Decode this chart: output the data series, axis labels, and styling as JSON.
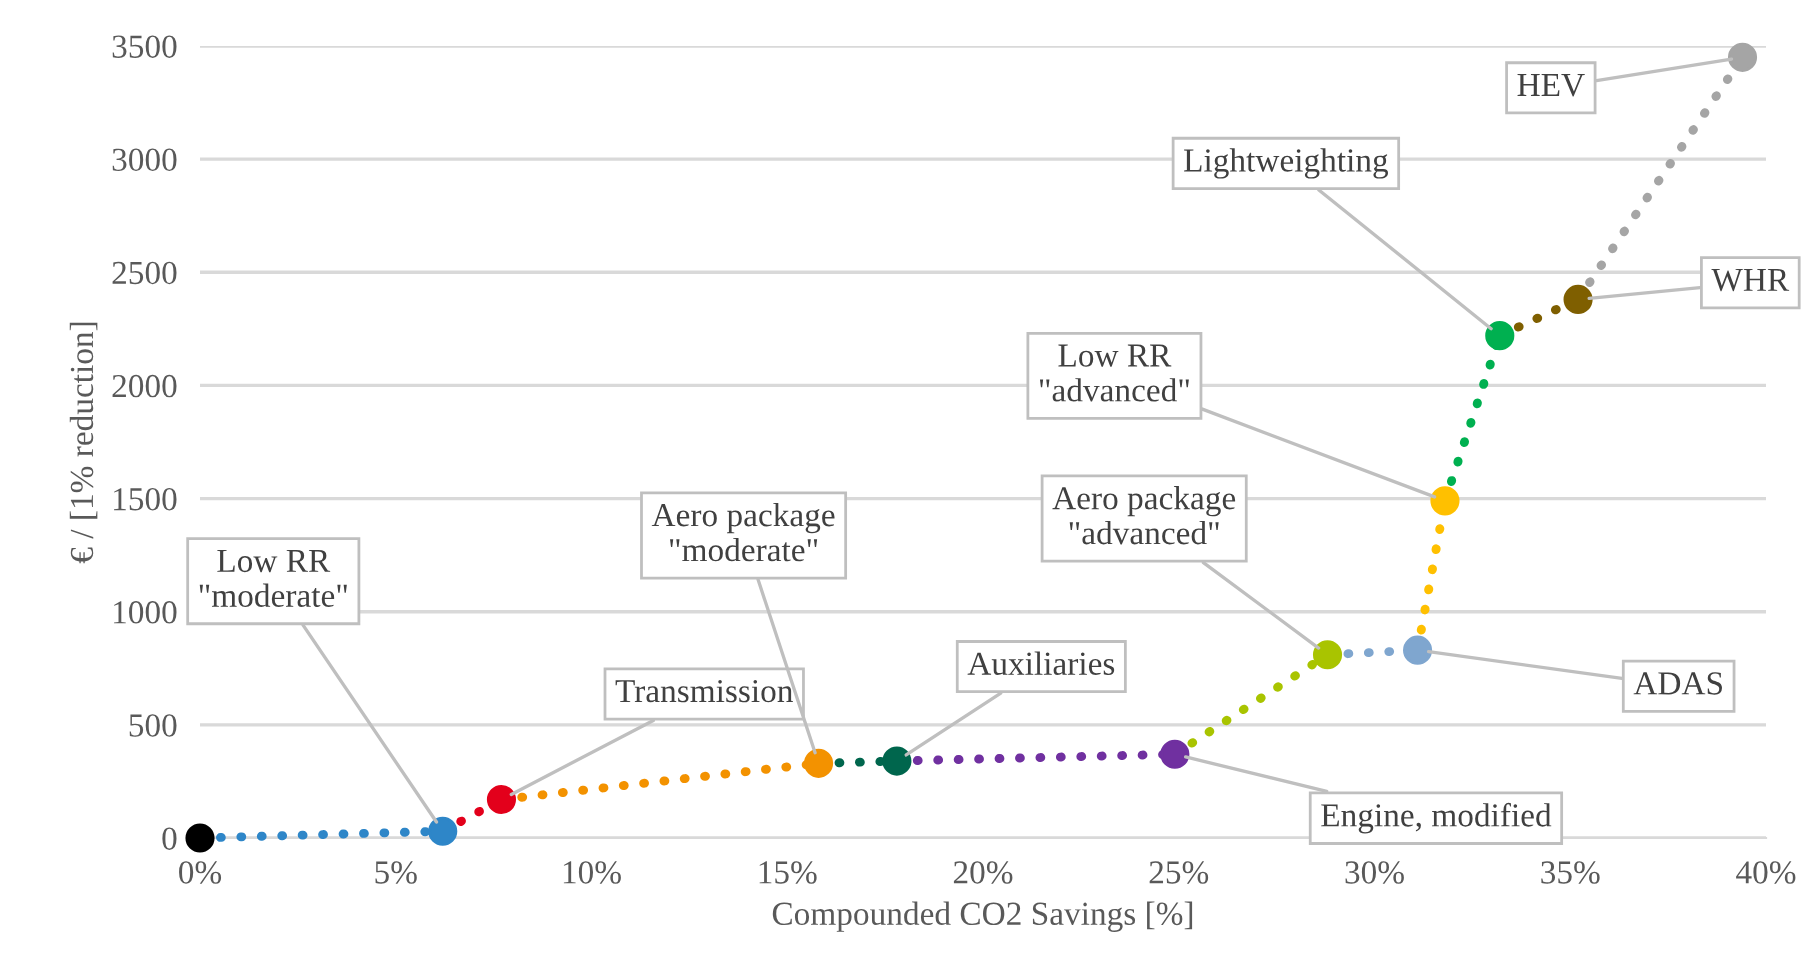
{
  "chart_data": {
    "type": "line",
    "xlabel": "Compounded CO2 Savings [%]",
    "ylabel": "€ / [1% reduction]",
    "xlim": [
      0,
      40
    ],
    "ylim": [
      0,
      3500
    ],
    "xticks": [
      {
        "value": 0,
        "label": "0%"
      },
      {
        "value": 5,
        "label": "5%"
      },
      {
        "value": 10,
        "label": "10%"
      },
      {
        "value": 15,
        "label": "15%"
      },
      {
        "value": 20,
        "label": "20%"
      },
      {
        "value": 25,
        "label": "25%"
      },
      {
        "value": 30,
        "label": "30%"
      },
      {
        "value": 35,
        "label": "35%"
      },
      {
        "value": 40,
        "label": "40%"
      }
    ],
    "yticks": [
      0,
      500,
      1000,
      1500,
      2000,
      2500,
      3000,
      3500
    ],
    "grid": "y",
    "legend": false,
    "line_style": "dotted",
    "series": [
      {
        "type": "scatter",
        "marker": "circle",
        "x": [
          0,
          6.2,
          7.7,
          15.8,
          17.8,
          24.9,
          28.8,
          31.1,
          31.8,
          33.2,
          35.2,
          39.4
        ],
        "values": [
          0,
          30,
          170,
          330,
          340,
          370,
          810,
          830,
          1490,
          2220,
          2380,
          3450
        ],
        "colors": [
          "#000000",
          "#2e86c8",
          "#e3001b",
          "#f39200",
          "#00664d",
          "#7030a0",
          "#a9c400",
          "#7fa6cf",
          "#ffc000",
          "#00b050",
          "#7f5f00",
          "#a5a5a5"
        ]
      },
      {
        "color": "#2e86c8",
        "x": [
          0,
          6.2
        ],
        "values": [
          0,
          30
        ]
      },
      {
        "color": "#e3001b",
        "x": [
          6.2,
          7.7
        ],
        "values": [
          30,
          170
        ]
      },
      {
        "color": "#f39200",
        "x": [
          7.7,
          15.8
        ],
        "values": [
          170,
          330
        ]
      },
      {
        "color": "#00664d",
        "x": [
          15.8,
          17.8
        ],
        "values": [
          330,
          340
        ]
      },
      {
        "color": "#7030a0",
        "x": [
          17.8,
          24.9
        ],
        "values": [
          340,
          370
        ]
      },
      {
        "color": "#a9c400",
        "x": [
          24.9,
          28.8
        ],
        "values": [
          370,
          810
        ]
      },
      {
        "color": "#7fa6cf",
        "x": [
          28.8,
          31.1
        ],
        "values": [
          810,
          830
        ]
      },
      {
        "color": "#ffc000",
        "x": [
          31.1,
          31.8
        ],
        "values": [
          830,
          1490
        ]
      },
      {
        "color": "#00b050",
        "x": [
          31.8,
          33.2
        ],
        "values": [
          1490,
          2220
        ]
      },
      {
        "color": "#7f5f00",
        "x": [
          33.2,
          35.2
        ],
        "values": [
          2220,
          2380
        ]
      },
      {
        "color": "#a5a5a5",
        "x": [
          35.2,
          39.4
        ],
        "values": [
          2380,
          3450
        ]
      }
    ],
    "annotations": [
      {
        "text": "Low RR\n\"moderate\"",
        "x": 6.2,
        "y": 30
      },
      {
        "text": "Transmission",
        "x": 7.7,
        "y": 170
      },
      {
        "text": "Aero package\n\"moderate\"",
        "x": 15.8,
        "y": 330
      },
      {
        "text": "Auxiliaries",
        "x": 17.8,
        "y": 340
      },
      {
        "text": "Engine, modified",
        "x": 24.9,
        "y": 370
      },
      {
        "text": "Aero package\n\"advanced\"",
        "x": 28.8,
        "y": 810
      },
      {
        "text": "ADAS",
        "x": 31.1,
        "y": 830
      },
      {
        "text": "Low RR\n\"advanced\"",
        "x": 31.8,
        "y": 1490
      },
      {
        "text": "Lightweighting",
        "x": 33.2,
        "y": 2220
      },
      {
        "text": "WHR",
        "x": 35.2,
        "y": 2380
      },
      {
        "text": "HEV",
        "x": 39.4,
        "y": 3450
      }
    ]
  }
}
